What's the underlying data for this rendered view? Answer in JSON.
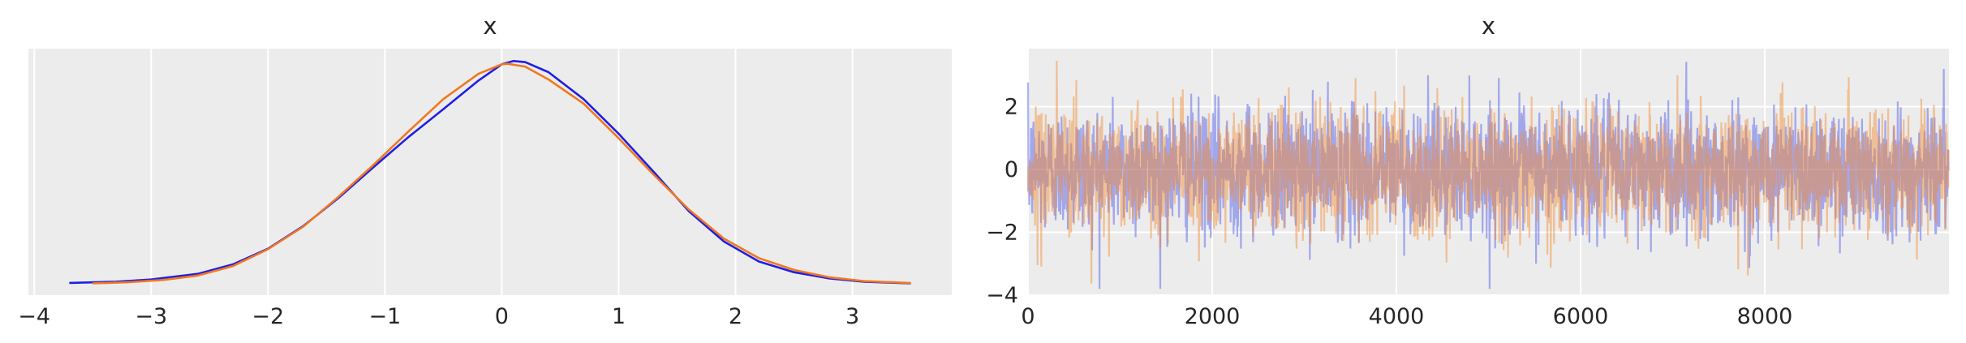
{
  "chart_data": [
    {
      "type": "line",
      "title": "x",
      "xlabel": "",
      "ylabel": "",
      "xlim": [
        -4.05,
        3.85
      ],
      "ylim": [
        -0.02,
        0.42
      ],
      "xticks": [
        -4,
        -3,
        -2,
        -1,
        0,
        1,
        2,
        3
      ],
      "xtick_labels": [
        "−4",
        "−3",
        "−2",
        "−1",
        "0",
        "1",
        "2",
        "3"
      ],
      "yticks": [],
      "grid": true,
      "background": "#ececec",
      "series": [
        {
          "color": "#1f1fe6",
          "x": [
            -3.7,
            -3.3,
            -3.0,
            -2.6,
            -2.3,
            -2.0,
            -1.7,
            -1.4,
            -1.1,
            -0.8,
            -0.5,
            -0.2,
            0.0,
            0.1,
            0.2,
            0.4,
            0.7,
            1.0,
            1.3,
            1.6,
            1.9,
            2.2,
            2.5,
            2.8,
            3.1,
            3.5
          ],
          "y": [
            0.0018,
            0.004,
            0.008,
            0.018,
            0.035,
            0.063,
            0.103,
            0.153,
            0.208,
            0.262,
            0.312,
            0.363,
            0.392,
            0.398,
            0.396,
            0.378,
            0.33,
            0.268,
            0.2,
            0.13,
            0.076,
            0.04,
            0.021,
            0.01,
            0.004,
            0.001
          ]
        },
        {
          "color": "#f07820",
          "x": [
            -3.5,
            -3.2,
            -2.9,
            -2.6,
            -2.3,
            -2.0,
            -1.7,
            -1.4,
            -1.1,
            -0.8,
            -0.5,
            -0.2,
            0.0,
            0.05,
            0.2,
            0.4,
            0.7,
            1.0,
            1.3,
            1.6,
            1.9,
            2.2,
            2.5,
            2.8,
            3.1,
            3.5
          ],
          "y": [
            0.0012,
            0.003,
            0.007,
            0.015,
            0.032,
            0.062,
            0.102,
            0.155,
            0.212,
            0.272,
            0.33,
            0.375,
            0.392,
            0.393,
            0.388,
            0.365,
            0.322,
            0.26,
            0.195,
            0.133,
            0.081,
            0.046,
            0.025,
            0.012,
            0.005,
            0.0015
          ]
        }
      ]
    },
    {
      "type": "line",
      "title": "x",
      "xlabel": "",
      "ylabel": "",
      "xlim": [
        0,
        10000
      ],
      "ylim": [
        -4,
        3.85
      ],
      "xticks": [
        0,
        2000,
        4000,
        6000,
        8000
      ],
      "xtick_labels": [
        "0",
        "2000",
        "4000",
        "6000",
        "8000"
      ],
      "yticks": [
        -4,
        -2,
        0,
        2
      ],
      "ytick_labels": [
        "−4",
        "−2",
        "0",
        "2"
      ],
      "grid": true,
      "background": "#ececec",
      "n_draws": 10000,
      "series": [
        {
          "color": "#4a55e8",
          "opacity": 0.45
        },
        {
          "color": "#f58a2e",
          "opacity": 0.45
        }
      ]
    }
  ]
}
